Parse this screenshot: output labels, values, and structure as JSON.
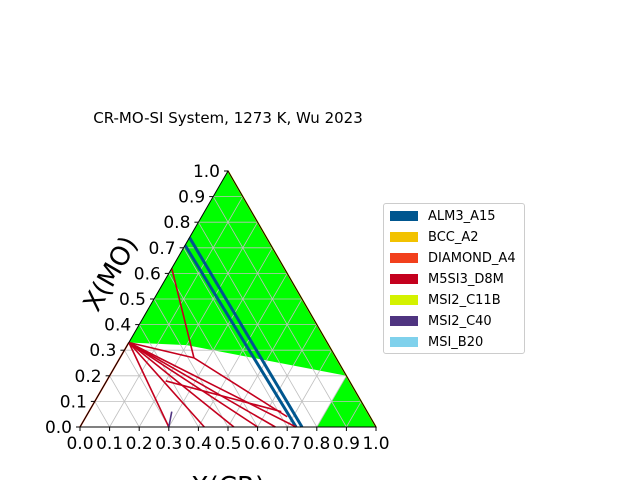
{
  "chart_data": {
    "type": "ternary",
    "title": "CR-MO-SI System, 1273 K, Wu 2023",
    "xlabel": "X(CR)",
    "ylabel": "X(MO)",
    "xlim": [
      0,
      1
    ],
    "ylim": [
      0,
      1
    ],
    "x_ticks": [
      "0.0",
      "0.1",
      "0.2",
      "0.3",
      "0.4",
      "0.5",
      "0.6",
      "0.7",
      "0.8",
      "0.9",
      "1.0"
    ],
    "y_ticks": [
      "0.0",
      "0.1",
      "0.2",
      "0.3",
      "0.4",
      "0.5",
      "0.6",
      "0.7",
      "0.8",
      "0.9",
      "1.0"
    ],
    "grid": true,
    "legend_position": "right",
    "legend": [
      {
        "name": "ALM3_A15",
        "color": "#00568f"
      },
      {
        "name": "BCC_A2",
        "color": "#f2c200"
      },
      {
        "name": "DIAMOND_A4",
        "color": "#f2401c"
      },
      {
        "name": "M5SI3_D8M",
        "color": "#c4001e"
      },
      {
        "name": "MSI2_C11B",
        "color": "#d4f200"
      },
      {
        "name": "MSI2_C40",
        "color": "#4f3480"
      },
      {
        "name": "MSI_B20",
        "color": "#7fd1ec"
      }
    ],
    "single_phase_color": "#00ff00",
    "regions": [
      {
        "points": [
          [
            0.2,
            0.32
          ],
          [
            0.8,
            0.2
          ],
          [
            0.8,
            0.0
          ],
          [
            1.0,
            0.0
          ],
          [
            0.0,
            1.0
          ],
          [
            0.0,
            0.63
          ],
          [
            0.0,
            0.33
          ]
        ]
      },
      {
        "points": [
          [
            0.0,
            0.0
          ],
          [
            0.3,
            0.0
          ],
          [
            0.3,
            0.07
          ],
          [
            0.0,
            0.06
          ]
        ]
      }
    ],
    "white_regions": [
      {
        "points": [
          [
            0.0,
            0.33
          ],
          [
            0.25,
            0.27
          ],
          [
            0.8,
            0.0
          ],
          [
            0.73,
            0.0
          ],
          [
            0.68,
            0.04
          ]
        ]
      },
      {
        "points": [
          [
            0.0,
            0.33
          ],
          [
            0.3,
            0.0
          ],
          [
            0.73,
            0.0
          ],
          [
            0.0,
            0.33
          ]
        ]
      },
      {
        "points": [
          [
            0.0,
            0.0
          ],
          [
            0.3,
            0.0
          ],
          [
            0.0,
            0.33
          ]
        ]
      },
      {
        "points": [
          [
            0.2,
            0.18
          ],
          [
            0.4,
            0.15
          ],
          [
            0.65,
            0.06
          ],
          [
            0.45,
            0.1
          ]
        ]
      }
    ],
    "phase_boundaries": [
      {
        "phase": "ALM3_A15",
        "color": "#00568f",
        "points": [
          [
            0.0,
            0.74
          ],
          [
            0.75,
            0.0
          ]
        ]
      },
      {
        "phase": "ALM3_A15",
        "color": "#00568f",
        "points": [
          [
            0.0,
            0.71
          ],
          [
            0.73,
            0.0
          ]
        ]
      },
      {
        "phase": "M5SI3_D8M",
        "color": "#c4001e",
        "points": [
          [
            0.0,
            0.62
          ],
          [
            0.25,
            0.27
          ]
        ]
      },
      {
        "phase": "M5SI3_D8M",
        "color": "#c4001e",
        "points": [
          [
            0.0,
            0.33
          ],
          [
            0.3,
            0.0
          ]
        ]
      },
      {
        "phase": "M5SI3_D8M",
        "color": "#c4001e",
        "points": [
          [
            0.0,
            0.33
          ],
          [
            0.42,
            0.0
          ]
        ]
      },
      {
        "phase": "M5SI3_D8M",
        "color": "#c4001e",
        "points": [
          [
            0.0,
            0.33
          ],
          [
            0.52,
            0.0
          ]
        ]
      },
      {
        "phase": "M5SI3_D8M",
        "color": "#c4001e",
        "points": [
          [
            0.0,
            0.33
          ],
          [
            0.6,
            0.0
          ]
        ]
      },
      {
        "phase": "M5SI3_D8M",
        "color": "#c4001e",
        "points": [
          [
            0.0,
            0.33
          ],
          [
            0.66,
            0.0
          ]
        ]
      },
      {
        "phase": "M5SI3_D8M",
        "color": "#c4001e",
        "points": [
          [
            0.0,
            0.33
          ],
          [
            0.73,
            0.0
          ]
        ]
      },
      {
        "phase": "DIAMOND_A4",
        "color": "#f2401c",
        "points": [
          [
            0.0,
            0.0
          ],
          [
            0.0,
            0.33
          ]
        ]
      },
      {
        "phase": "M5SI3_D8M",
        "color": "#c4001e",
        "points": [
          [
            0.0,
            0.33
          ],
          [
            0.25,
            0.27
          ],
          [
            0.68,
            0.04
          ]
        ]
      },
      {
        "phase": "M5SI3_D8M",
        "color": "#c4001e",
        "points": [
          [
            0.2,
            0.18
          ],
          [
            0.65,
            0.06
          ]
        ]
      },
      {
        "phase": "MSI2_C40",
        "color": "#4f3480",
        "points": [
          [
            0.3,
            0.0
          ],
          [
            0.28,
            0.06
          ]
        ]
      },
      {
        "phase": "BCC_A2",
        "color": "#f2c200",
        "points": [
          [
            1.0,
            0.0
          ],
          [
            0.0,
            1.0
          ]
        ]
      }
    ]
  }
}
